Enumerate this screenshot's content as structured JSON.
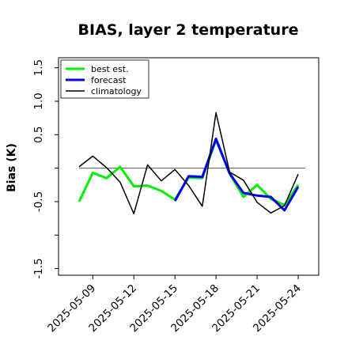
{
  "chart_data": {
    "type": "line",
    "title": "BIAS, layer 2 temperature",
    "xlabel": "",
    "ylabel": "Bias (K)",
    "ylim": [
      -1.6,
      1.65
    ],
    "xlim": [
      "2025-05-06T12:00",
      "2025-05-25T12:00"
    ],
    "y_ticks": [
      -1.5,
      -1.0,
      -0.5,
      0.0,
      0.5,
      1.0,
      1.5
    ],
    "y_tick_labels": [
      "-1.5",
      "",
      "-0.5",
      "",
      "0.5",
      "1.0",
      "1.5"
    ],
    "x_ticks": [
      "2025-05-09",
      "2025-05-12",
      "2025-05-15",
      "2025-05-18",
      "2025-05-21",
      "2025-05-24"
    ],
    "x_tick_labels": [
      "2025-05-09",
      "2025-05-12",
      "2025-05-15",
      "2025-05-18",
      "2025-05-21",
      "2025-05-24"
    ],
    "highlighted_tick": "2025-05-15",
    "highlight_color": "#228B22",
    "reference_line": 0.0,
    "legend_position": "top-left",
    "grid": false,
    "series": [
      {
        "name": "best est.",
        "color": "#00ee00",
        "width": 3,
        "x": [
          "2025-05-08",
          "2025-05-09",
          "2025-05-10",
          "2025-05-11",
          "2025-05-12",
          "2025-05-13",
          "2025-05-14",
          "2025-05-15",
          "2025-05-16",
          "2025-05-17",
          "2025-05-18",
          "2025-05-19",
          "2025-05-20",
          "2025-05-21",
          "2025-05-22",
          "2025-05-23",
          "2025-05-24"
        ],
        "values": [
          -0.5,
          -0.07,
          -0.15,
          0.02,
          -0.27,
          -0.26,
          -0.34,
          -0.47,
          -0.14,
          -0.15,
          0.42,
          -0.08,
          -0.43,
          -0.25,
          -0.46,
          -0.55,
          -0.25
        ]
      },
      {
        "name": "forecast",
        "color": "#0000ee",
        "width": 3,
        "x": [
          "2025-05-15",
          "2025-05-16",
          "2025-05-17",
          "2025-05-18",
          "2025-05-19",
          "2025-05-20",
          "2025-05-21",
          "2025-05-22",
          "2025-05-23",
          "2025-05-24"
        ],
        "values": [
          -0.49,
          -0.12,
          -0.13,
          0.44,
          -0.08,
          -0.37,
          -0.41,
          -0.43,
          -0.63,
          -0.28
        ]
      },
      {
        "name": "climatology",
        "color": "#000000",
        "width": 1.5,
        "x": [
          "2025-05-08",
          "2025-05-09",
          "2025-05-10",
          "2025-05-11",
          "2025-05-12",
          "2025-05-13",
          "2025-05-14",
          "2025-05-15",
          "2025-05-16",
          "2025-05-17",
          "2025-05-18",
          "2025-05-19",
          "2025-05-20",
          "2025-05-21",
          "2025-05-22",
          "2025-05-23",
          "2025-05-24"
        ],
        "values": [
          0.02,
          0.18,
          0.01,
          -0.21,
          -0.68,
          0.05,
          -0.19,
          -0.02,
          -0.26,
          -0.57,
          0.83,
          -0.06,
          -0.18,
          -0.51,
          -0.67,
          -0.56,
          -0.09
        ]
      }
    ]
  }
}
